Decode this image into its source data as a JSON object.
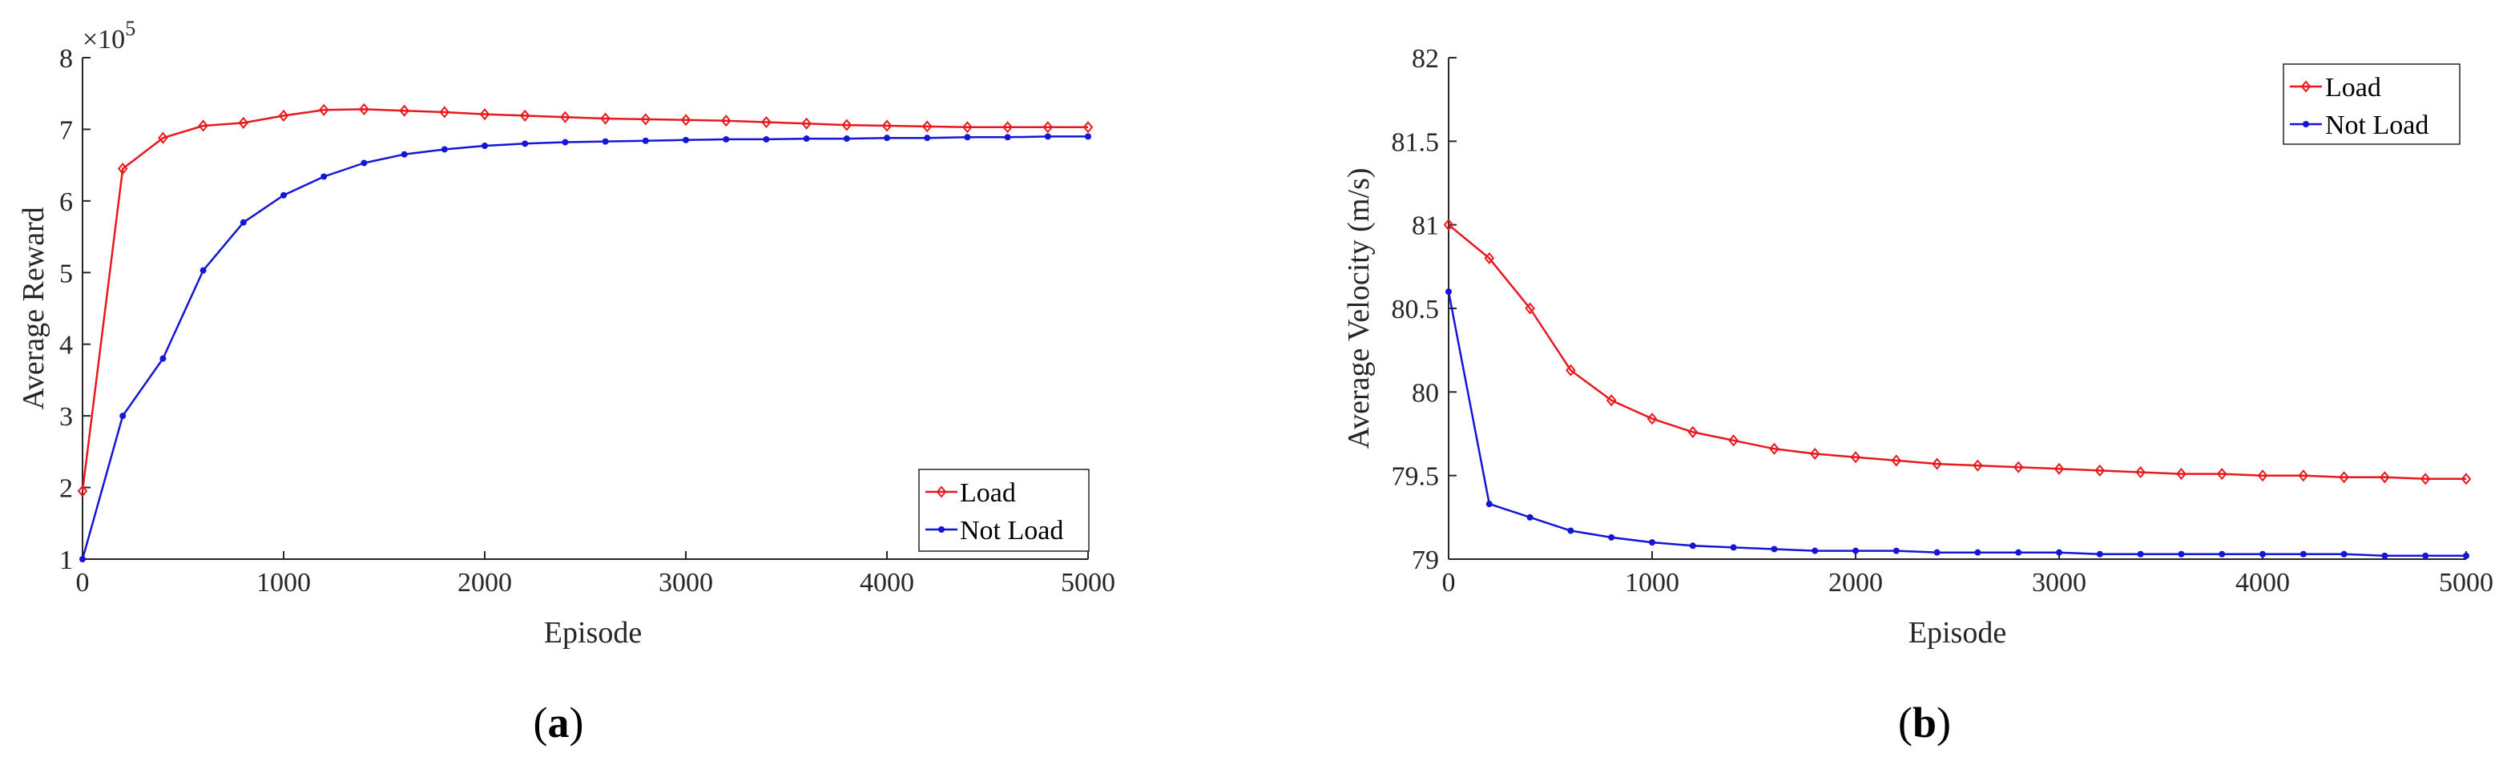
{
  "colors": {
    "load": "#e8191e",
    "not_load": "#1515d6",
    "axis": "#262626",
    "grid": "#dcdcdc"
  },
  "chart_data": [
    {
      "type": "line",
      "caption_letter": "a",
      "caption_open": "(",
      "caption_close": ")",
      "xlabel": "Episode",
      "ylabel": "Average Reward",
      "exponent_label": "×10",
      "exponent_power": "5",
      "xlim": [
        0,
        5000
      ],
      "ylim": [
        1,
        8
      ],
      "xticks": [
        0,
        1000,
        2000,
        3000,
        4000,
        5000
      ],
      "xtick_labels": [
        "0",
        "1000",
        "2000",
        "3000",
        "4000",
        "5000"
      ],
      "yticks": [
        1,
        2,
        3,
        4,
        5,
        6,
        7,
        8
      ],
      "ytick_labels": [
        "1",
        "2",
        "3",
        "4",
        "5",
        "6",
        "7",
        "8"
      ],
      "legend_position": "bottom-right",
      "x": [
        0,
        200,
        400,
        600,
        800,
        1000,
        1200,
        1400,
        1600,
        1800,
        2000,
        2200,
        2400,
        2600,
        2800,
        3000,
        3200,
        3400,
        3600,
        3800,
        4000,
        4200,
        4400,
        4600,
        4800,
        5000
      ],
      "series": [
        {
          "name": "Load",
          "marker": "diamond",
          "color_key": "load",
          "values": [
            1.95,
            6.45,
            6.88,
            7.05,
            7.09,
            7.19,
            7.27,
            7.28,
            7.26,
            7.24,
            7.21,
            7.19,
            7.17,
            7.15,
            7.14,
            7.13,
            7.12,
            7.1,
            7.08,
            7.06,
            7.05,
            7.04,
            7.03,
            7.03,
            7.03,
            7.03
          ]
        },
        {
          "name": "Not Load",
          "marker": "dot",
          "color_key": "not_load",
          "values": [
            1.0,
            3.0,
            3.8,
            5.03,
            5.7,
            6.08,
            6.34,
            6.53,
            6.65,
            6.72,
            6.77,
            6.8,
            6.82,
            6.83,
            6.84,
            6.85,
            6.86,
            6.86,
            6.87,
            6.87,
            6.88,
            6.88,
            6.89,
            6.89,
            6.9,
            6.9
          ]
        }
      ]
    },
    {
      "type": "line",
      "caption_letter": "b",
      "caption_open": "(",
      "caption_close": ")",
      "xlabel": "Episode",
      "ylabel": "Average Velocity (m/s)",
      "xlim": [
        0,
        5000
      ],
      "ylim": [
        79,
        82
      ],
      "xticks": [
        0,
        1000,
        2000,
        3000,
        4000,
        5000
      ],
      "xtick_labels": [
        "0",
        "1000",
        "2000",
        "3000",
        "4000",
        "5000"
      ],
      "yticks": [
        79,
        79.5,
        80,
        80.5,
        81,
        81.5,
        82
      ],
      "ytick_labels": [
        "79",
        "79.5",
        "80",
        "80.5",
        "81",
        "81.5",
        "82"
      ],
      "legend_position": "top-right",
      "x": [
        0,
        200,
        400,
        600,
        800,
        1000,
        1200,
        1400,
        1600,
        1800,
        2000,
        2200,
        2400,
        2600,
        2800,
        3000,
        3200,
        3400,
        3600,
        3800,
        4000,
        4200,
        4400,
        4600,
        4800,
        5000
      ],
      "series": [
        {
          "name": "Load",
          "marker": "diamond",
          "color_key": "load",
          "values": [
            81.0,
            80.8,
            80.5,
            80.13,
            79.95,
            79.84,
            79.76,
            79.71,
            79.66,
            79.63,
            79.61,
            79.59,
            79.57,
            79.56,
            79.55,
            79.54,
            79.53,
            79.52,
            79.51,
            79.51,
            79.5,
            79.5,
            79.49,
            79.49,
            79.48,
            79.48
          ]
        },
        {
          "name": "Not Load",
          "marker": "dot",
          "color_key": "not_load",
          "values": [
            80.6,
            79.33,
            79.25,
            79.17,
            79.13,
            79.1,
            79.08,
            79.07,
            79.06,
            79.05,
            79.05,
            79.05,
            79.04,
            79.04,
            79.04,
            79.04,
            79.03,
            79.03,
            79.03,
            79.03,
            79.03,
            79.03,
            79.03,
            79.02,
            79.02,
            79.02
          ]
        }
      ]
    }
  ]
}
